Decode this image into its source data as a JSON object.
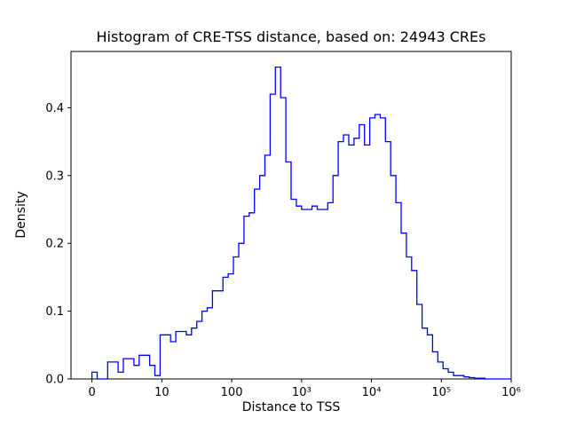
{
  "chart_data": {
    "type": "histogram",
    "title": "Histogram of CRE-TSS distance, based on: 24943 CREs",
    "xlabel": "Distance to TSS",
    "ylabel": "Density",
    "x_scale": "log10 decades of distance, zero at axis start",
    "x_tick_positions": [
      0,
      1,
      2,
      3,
      4,
      5,
      6
    ],
    "x_tick_labels": [
      "0",
      "10",
      "100",
      "10³",
      "10⁴",
      "10⁵",
      "10⁶"
    ],
    "y_ticks": [
      0.0,
      0.1,
      0.2,
      0.3,
      0.4
    ],
    "y_tick_labels": [
      "0.0",
      "0.1",
      "0.2",
      "0.3",
      "0.4"
    ],
    "xlim_log": [
      -0.3,
      6.0
    ],
    "ylim": [
      0.0,
      0.483
    ],
    "line_color": "#0000ff",
    "background": "#ffffff",
    "grid": false,
    "legend": "none",
    "bin_start_log": 0.0,
    "bin_width_log": 0.075,
    "densities": [
      0.01,
      0.0,
      0.0,
      0.025,
      0.025,
      0.01,
      0.03,
      0.03,
      0.02,
      0.035,
      0.035,
      0.02,
      0.005,
      0.065,
      0.065,
      0.055,
      0.07,
      0.07,
      0.065,
      0.075,
      0.085,
      0.1,
      0.105,
      0.13,
      0.13,
      0.15,
      0.155,
      0.18,
      0.2,
      0.24,
      0.245,
      0.28,
      0.3,
      0.33,
      0.42,
      0.46,
      0.415,
      0.32,
      0.265,
      0.255,
      0.25,
      0.25,
      0.255,
      0.25,
      0.25,
      0.26,
      0.3,
      0.35,
      0.36,
      0.345,
      0.355,
      0.375,
      0.345,
      0.385,
      0.39,
      0.385,
      0.35,
      0.3,
      0.26,
      0.215,
      0.18,
      0.16,
      0.11,
      0.075,
      0.065,
      0.04,
      0.025,
      0.015,
      0.01,
      0.005,
      0.005,
      0.003,
      0.002,
      0.001,
      0.001,
      0.0,
      0.0,
      0.0,
      0.0,
      0.0
    ]
  }
}
